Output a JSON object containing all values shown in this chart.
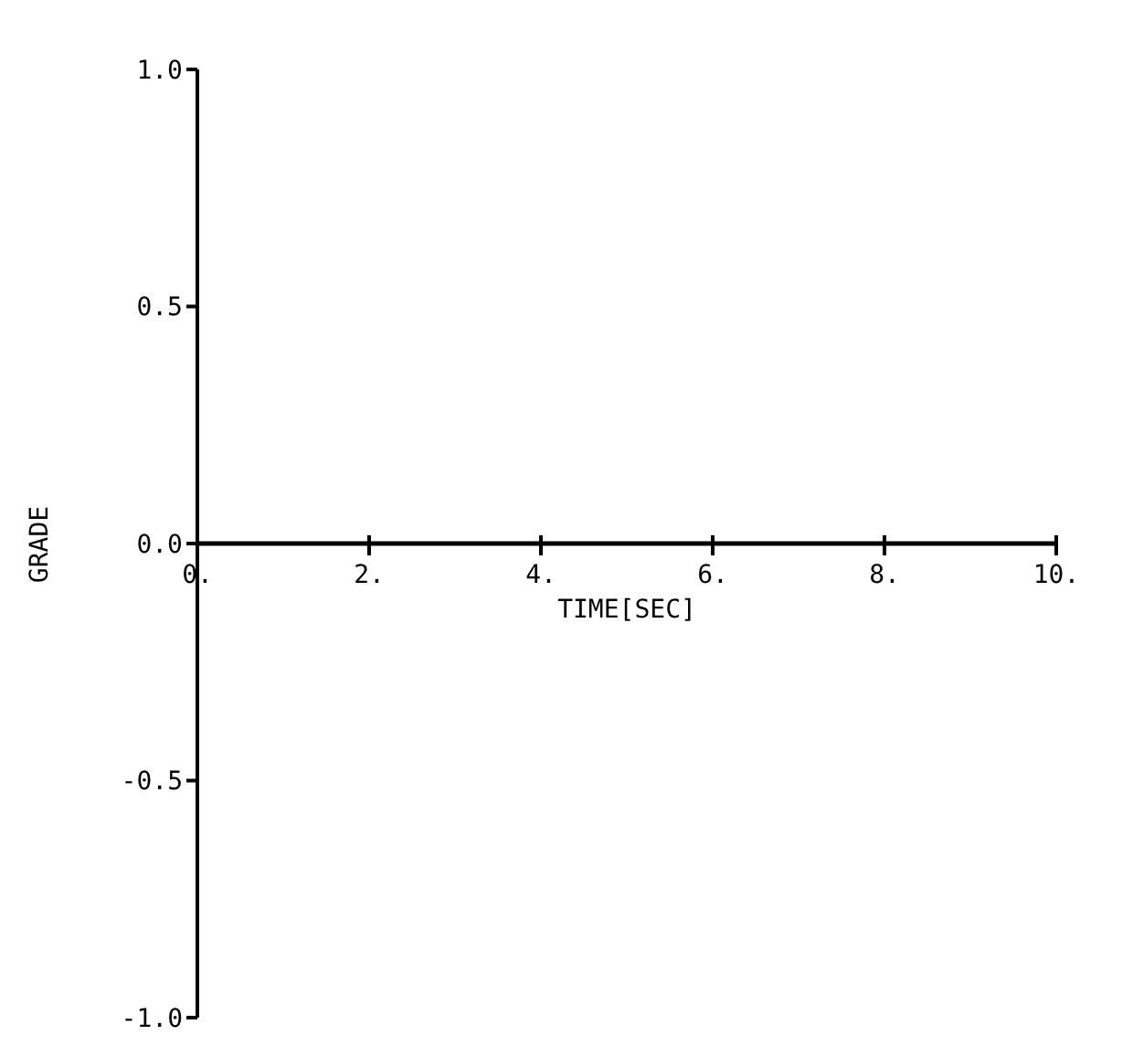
{
  "chart_data": {
    "type": "line",
    "xlabel": "TIME[SEC]",
    "ylabel": "GRADE",
    "x": [
      0,
      10
    ],
    "series": [
      {
        "color": "#000000",
        "values": [
          0,
          0
        ]
      }
    ],
    "xlim": [
      0,
      10
    ],
    "ylim": [
      -1,
      1
    ],
    "xticks": [
      {
        "value": 0,
        "label": "0."
      },
      {
        "value": 2,
        "label": "2."
      },
      {
        "value": 4,
        "label": "4."
      },
      {
        "value": 6,
        "label": "6."
      },
      {
        "value": 8,
        "label": "8."
      },
      {
        "value": 10,
        "label": "10."
      }
    ],
    "yticks": [
      {
        "value": -1,
        "label": "-1.0"
      },
      {
        "value": -0.5,
        "label": "-0.5"
      },
      {
        "value": 0,
        "label": "0.0"
      },
      {
        "value": 0.5,
        "label": "0.5"
      },
      {
        "value": 1,
        "label": "1.0"
      }
    ]
  }
}
